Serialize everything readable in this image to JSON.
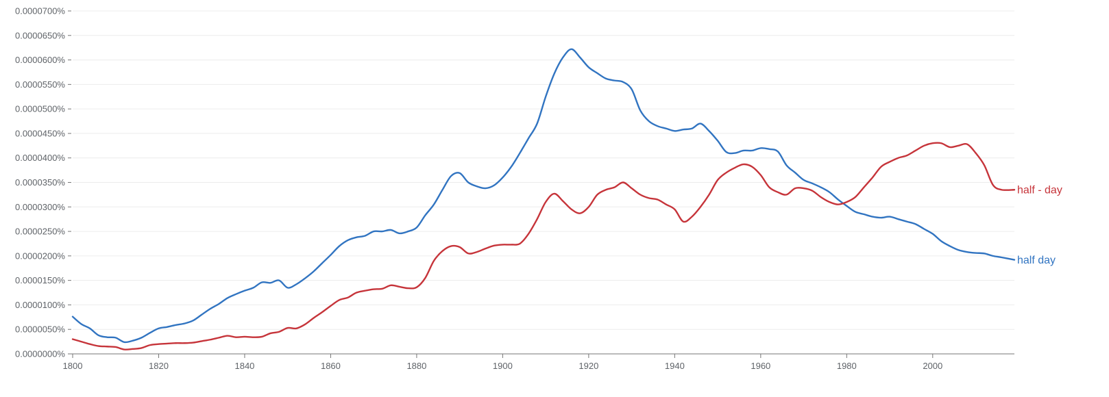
{
  "chart_data": {
    "type": "line",
    "title": "",
    "xlabel": "",
    "ylabel": "",
    "xlim": [
      1800,
      2019
    ],
    "ylim": [
      0,
      7e-07
    ],
    "y_tick_values": [
      0,
      5e-08,
      1e-07,
      1.5e-07,
      2e-07,
      2.5e-07,
      3e-07,
      3.5e-07,
      4e-07,
      4.5e-07,
      5e-07,
      5.5e-07,
      6e-07,
      6.5e-07,
      7e-07
    ],
    "y_tick_labels": [
      "0.0000000%",
      "0.0000050%",
      "0.0000100%",
      "0.0000150%",
      "0.0000200%",
      "0.0000250%",
      "0.0000300%",
      "0.0000350%",
      "0.0000400%",
      "0.0000450%",
      "0.0000500%",
      "0.0000550%",
      "0.0000600%",
      "0.0000650%",
      "0.0000700%"
    ],
    "x_tick_values": [
      1800,
      1820,
      1840,
      1860,
      1880,
      1900,
      1920,
      1940,
      1960,
      1980,
      2000
    ],
    "x_tick_labels": [
      "1800",
      "1820",
      "1840",
      "1860",
      "1880",
      "1900",
      "1920",
      "1940",
      "1960",
      "1980",
      "2000"
    ],
    "grid": true,
    "legend": "end-of-line labels",
    "series": [
      {
        "name": "half day",
        "color": "#3174c1",
        "x": [
          1800,
          1802,
          1804,
          1806,
          1808,
          1810,
          1812,
          1814,
          1816,
          1818,
          1820,
          1822,
          1824,
          1826,
          1828,
          1830,
          1832,
          1834,
          1836,
          1838,
          1840,
          1842,
          1844,
          1846,
          1848,
          1850,
          1852,
          1854,
          1856,
          1858,
          1860,
          1862,
          1864,
          1866,
          1868,
          1870,
          1872,
          1874,
          1876,
          1878,
          1880,
          1882,
          1884,
          1886,
          1888,
          1890,
          1892,
          1894,
          1896,
          1898,
          1900,
          1902,
          1904,
          1906,
          1908,
          1910,
          1912,
          1914,
          1916,
          1918,
          1920,
          1922,
          1924,
          1926,
          1928,
          1930,
          1932,
          1934,
          1936,
          1938,
          1940,
          1942,
          1944,
          1946,
          1948,
          1950,
          1952,
          1954,
          1956,
          1958,
          1960,
          1962,
          1964,
          1966,
          1968,
          1970,
          1972,
          1974,
          1976,
          1978,
          1980,
          1982,
          1984,
          1986,
          1988,
          1990,
          1992,
          1994,
          1996,
          1998,
          2000,
          2002,
          2004,
          2006,
          2008,
          2010,
          2012,
          2014,
          2016,
          2019
        ],
        "values": [
          7.6e-08,
          6.1e-08,
          5.2e-08,
          3.8e-08,
          3.4e-08,
          3.3e-08,
          2.4e-08,
          2.7e-08,
          3.3e-08,
          4.3e-08,
          5.2e-08,
          5.5e-08,
          5.9e-08,
          6.2e-08,
          6.8e-08,
          8e-08,
          9.2e-08,
          1.02e-07,
          1.14e-07,
          1.22e-07,
          1.29e-07,
          1.35e-07,
          1.46e-07,
          1.45e-07,
          1.5e-07,
          1.35e-07,
          1.42e-07,
          1.54e-07,
          1.68e-07,
          1.85e-07,
          2.02e-07,
          2.2e-07,
          2.32e-07,
          2.38e-07,
          2.41e-07,
          2.5e-07,
          2.5e-07,
          2.53e-07,
          2.46e-07,
          2.5e-07,
          2.58e-07,
          2.83e-07,
          3.05e-07,
          3.35e-07,
          3.63e-07,
          3.69e-07,
          3.5e-07,
          3.42e-07,
          3.38e-07,
          3.44e-07,
          3.6e-07,
          3.82e-07,
          4.1e-07,
          4.4e-07,
          4.7e-07,
          5.25e-07,
          5.72e-07,
          6.05e-07,
          6.22e-07,
          6.05e-07,
          5.85e-07,
          5.73e-07,
          5.62e-07,
          5.58e-07,
          5.55e-07,
          5.4e-07,
          4.97e-07,
          4.75e-07,
          4.65e-07,
          4.6e-07,
          4.55e-07,
          4.58e-07,
          4.6e-07,
          4.7e-07,
          4.55e-07,
          4.35e-07,
          4.12e-07,
          4.1e-07,
          4.15e-07,
          4.15e-07,
          4.2e-07,
          4.18e-07,
          4.13e-07,
          3.85e-07,
          3.7e-07,
          3.55e-07,
          3.48e-07,
          3.4e-07,
          3.3e-07,
          3.15e-07,
          3.02e-07,
          2.9e-07,
          2.85e-07,
          2.8e-07,
          2.78e-07,
          2.8e-07,
          2.75e-07,
          2.7e-07,
          2.65e-07,
          2.55e-07,
          2.45e-07,
          2.3e-07,
          2.2e-07,
          2.12e-07,
          2.08e-07,
          2.06e-07,
          2.05e-07,
          2e-07,
          1.97e-07,
          1.92e-07
        ]
      },
      {
        "name": "half - day",
        "color": "#c6343a",
        "x": [
          1800,
          1802,
          1804,
          1806,
          1808,
          1810,
          1812,
          1814,
          1816,
          1818,
          1820,
          1822,
          1824,
          1826,
          1828,
          1830,
          1832,
          1834,
          1836,
          1838,
          1840,
          1842,
          1844,
          1846,
          1848,
          1850,
          1852,
          1854,
          1856,
          1858,
          1860,
          1862,
          1864,
          1866,
          1868,
          1870,
          1872,
          1874,
          1876,
          1878,
          1880,
          1882,
          1884,
          1886,
          1888,
          1890,
          1892,
          1894,
          1896,
          1898,
          1900,
          1902,
          1904,
          1906,
          1908,
          1910,
          1912,
          1914,
          1916,
          1918,
          1920,
          1922,
          1924,
          1926,
          1928,
          1930,
          1932,
          1934,
          1936,
          1938,
          1940,
          1942,
          1944,
          1946,
          1948,
          1950,
          1952,
          1954,
          1956,
          1958,
          1960,
          1962,
          1964,
          1966,
          1968,
          1970,
          1972,
          1974,
          1976,
          1978,
          1980,
          1982,
          1984,
          1986,
          1988,
          1990,
          1992,
          1994,
          1996,
          1998,
          2000,
          2002,
          2004,
          2006,
          2008,
          2010,
          2012,
          2014,
          2016,
          2019
        ],
        "values": [
          3e-08,
          2.5e-08,
          2e-08,
          1.6e-08,
          1.5e-08,
          1.4e-08,
          9e-09,
          1e-08,
          1.2e-08,
          1.8e-08,
          2e-08,
          2.1e-08,
          2.2e-08,
          2.2e-08,
          2.3e-08,
          2.6e-08,
          2.9e-08,
          3.3e-08,
          3.7e-08,
          3.4e-08,
          3.5e-08,
          3.4e-08,
          3.5e-08,
          4.2e-08,
          4.5e-08,
          5.3e-08,
          5.2e-08,
          6e-08,
          7.3e-08,
          8.5e-08,
          9.8e-08,
          1.1e-07,
          1.15e-07,
          1.25e-07,
          1.29e-07,
          1.32e-07,
          1.33e-07,
          1.4e-07,
          1.37e-07,
          1.34e-07,
          1.36e-07,
          1.55e-07,
          1.9e-07,
          2.1e-07,
          2.2e-07,
          2.18e-07,
          2.05e-07,
          2.08e-07,
          2.15e-07,
          2.21e-07,
          2.23e-07,
          2.23e-07,
          2.25e-07,
          2.45e-07,
          2.75e-07,
          3.1e-07,
          3.27e-07,
          3.12e-07,
          2.95e-07,
          2.87e-07,
          3e-07,
          3.25e-07,
          3.35e-07,
          3.4e-07,
          3.5e-07,
          3.38e-07,
          3.25e-07,
          3.18e-07,
          3.15e-07,
          3.05e-07,
          2.95e-07,
          2.7e-07,
          2.8e-07,
          3e-07,
          3.25e-07,
          3.55e-07,
          3.7e-07,
          3.8e-07,
          3.87e-07,
          3.82e-07,
          3.65e-07,
          3.4e-07,
          3.3e-07,
          3.25e-07,
          3.38e-07,
          3.38e-07,
          3.33e-07,
          3.2e-07,
          3.1e-07,
          3.05e-07,
          3.1e-07,
          3.2e-07,
          3.4e-07,
          3.6e-07,
          3.82e-07,
          3.92e-07,
          4e-07,
          4.05e-07,
          4.15e-07,
          4.25e-07,
          4.3e-07,
          4.3e-07,
          4.22e-07,
          4.25e-07,
          4.28e-07,
          4.1e-07,
          3.85e-07,
          3.45e-07,
          3.35e-07,
          3.35e-07
        ]
      }
    ]
  }
}
